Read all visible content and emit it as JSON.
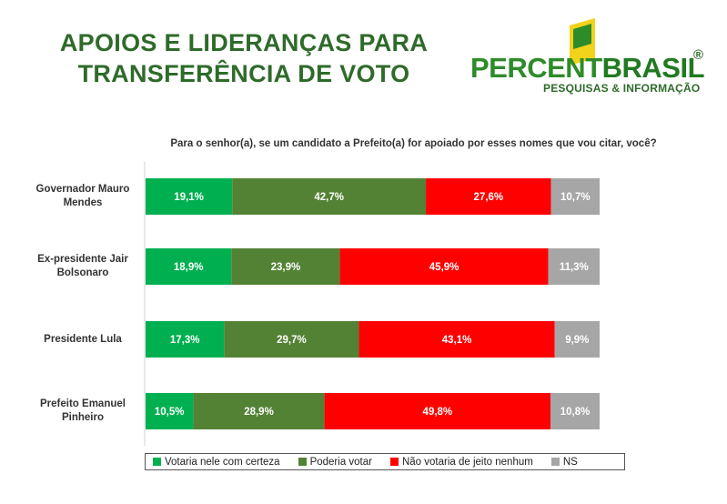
{
  "header": {
    "title_line1": "APOIOS E LIDERANÇAS PARA",
    "title_line2": "TRANSFERÊNCIA DE VOTO"
  },
  "logo": {
    "brand_part1": "PERCENT",
    "brand_part2": "BRASIL",
    "registered": "®",
    "tagline": "PESQUISAS & INFORMAÇÃO",
    "colors": {
      "green": "#2e8b2a",
      "yellow": "#f2d21b",
      "dark_green": "#2e6b2a"
    }
  },
  "chart_data": {
    "type": "bar",
    "orientation": "horizontal",
    "stacked": "100%",
    "title": "Para o senhor(a), se um candidato a Prefeito(a) for apoiado por esses nomes que vou citar, você?",
    "categories": [
      [
        "Governador Mauro",
        "Mendes"
      ],
      [
        "Ex-presidente Jair",
        "Bolsonaro"
      ],
      [
        "Presidente Lula"
      ],
      [
        "Prefeito Emanuel",
        "Pinheiro"
      ]
    ],
    "series": [
      {
        "name": "Votaria nele com certeza",
        "color": "#00b050",
        "values": [
          19.1,
          18.9,
          17.3,
          10.5
        ],
        "labels": [
          "19,1%",
          "18,9%",
          "17,3%",
          "10,5%"
        ]
      },
      {
        "name": "Poderia votar",
        "color": "#548235",
        "values": [
          42.7,
          23.9,
          29.7,
          28.9
        ],
        "labels": [
          "42,7%",
          "23,9%",
          "29,7%",
          "28,9%"
        ]
      },
      {
        "name": "Não votaria de jeito nenhum",
        "color": "#ff0000",
        "values": [
          27.6,
          45.9,
          43.1,
          49.8
        ],
        "labels": [
          "27,6%",
          "45,9%",
          "43,1%",
          "49,8%"
        ]
      },
      {
        "name": "NS",
        "color": "#a6a6a6",
        "values": [
          10.7,
          11.3,
          9.9,
          10.8
        ],
        "labels": [
          "10,7%",
          "11,3%",
          "9,9%",
          "10,8%"
        ]
      }
    ],
    "legend_position": "bottom",
    "grid": false
  }
}
